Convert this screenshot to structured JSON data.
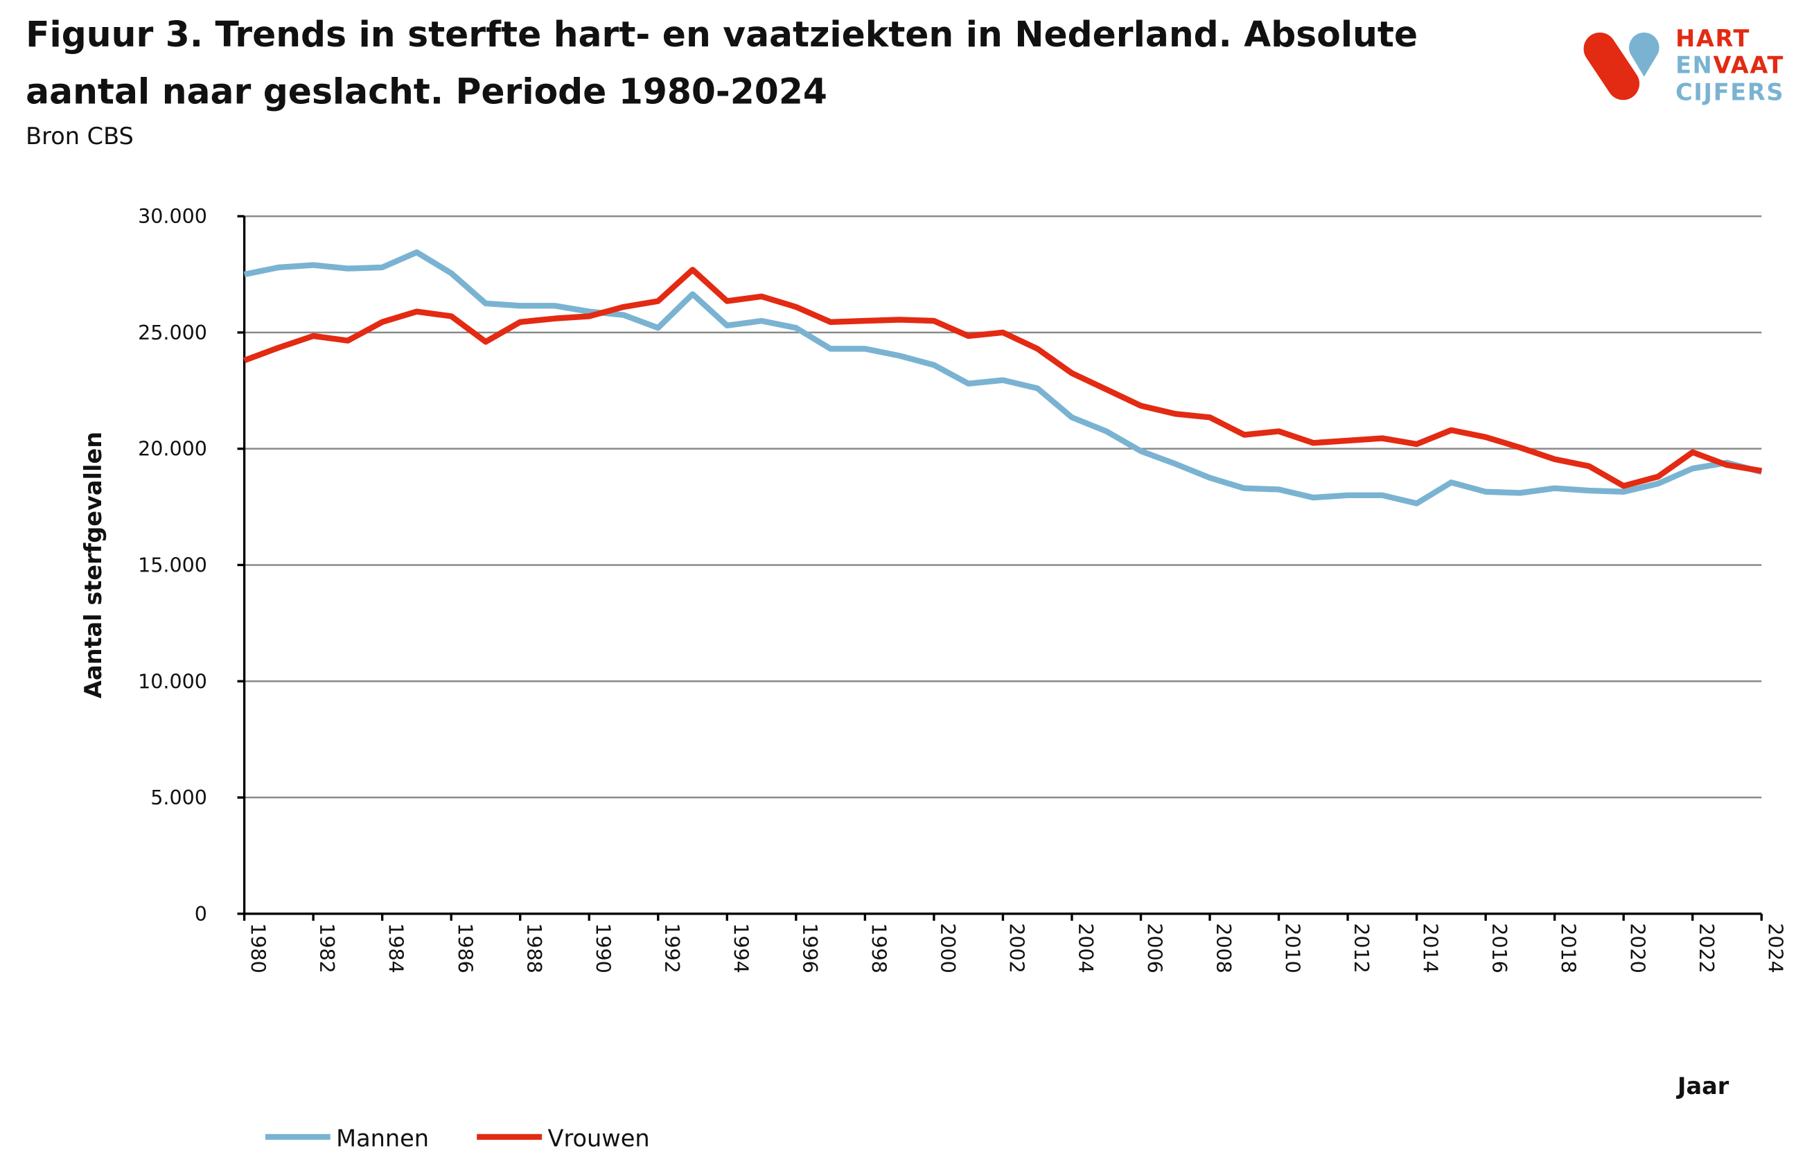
{
  "title_line1": "Figuur 3. Trends in sterfte hart- en vaatziekten in Nederland. Absolute",
  "title_line2": "aantal naar geslacht. Periode 1980-2024",
  "source": "Bron CBS",
  "logo": {
    "line1": "HART",
    "line2a": "EN",
    "line2b": "VAAT",
    "line3": "CIJFERS",
    "red": "#e32a12",
    "blue": "#7ab3d2"
  },
  "chart_data": {
    "type": "line",
    "title": "Figuur 3. Trends in sterfte hart- en vaatziekten in Nederland. Absolute aantal naar geslacht. Periode 1980-2024",
    "xlabel": "Jaar",
    "ylabel": "Aantal sterfgevallen",
    "ylim": [
      0,
      30000
    ],
    "xlim": [
      1980,
      2024
    ],
    "grid": true,
    "legend": "bottom-left",
    "y_ticks": [
      "0",
      "5.000",
      "10.000",
      "15.000",
      "20.000",
      "25.000",
      "30.000"
    ],
    "x_ticks": [
      "1980",
      "1982",
      "1984",
      "1986",
      "1988",
      "1990",
      "1992",
      "1994",
      "1996",
      "1998",
      "2000",
      "2002",
      "2004",
      "2006",
      "2008",
      "2010",
      "2012",
      "2014",
      "2016",
      "2018",
      "2020",
      "2022",
      "2024"
    ],
    "x": [
      1980,
      1981,
      1982,
      1983,
      1984,
      1985,
      1986,
      1987,
      1988,
      1989,
      1990,
      1991,
      1992,
      1993,
      1994,
      1995,
      1996,
      1997,
      1998,
      1999,
      2000,
      2001,
      2002,
      2003,
      2004,
      2005,
      2006,
      2007,
      2008,
      2009,
      2010,
      2011,
      2012,
      2013,
      2014,
      2015,
      2016,
      2017,
      2018,
      2019,
      2020,
      2021,
      2022,
      2023,
      2024
    ],
    "series": [
      {
        "name": "Mannen",
        "color": "#7ab3d2",
        "values": [
          27500,
          27800,
          27900,
          27750,
          27800,
          28450,
          27550,
          26250,
          26150,
          26150,
          25900,
          25750,
          25200,
          26650,
          25300,
          25500,
          25200,
          24300,
          24300,
          24000,
          23600,
          22800,
          22950,
          22600,
          21350,
          20750,
          19900,
          19350,
          18750,
          18300,
          18250,
          17900,
          18000,
          18000,
          17650,
          18550,
          18150,
          18100,
          18300,
          18200,
          18150,
          18500,
          19150,
          19400,
          19000
        ]
      },
      {
        "name": "Vrouwen",
        "color": "#e32a12",
        "values": [
          23800,
          24350,
          24850,
          24650,
          25450,
          25900,
          25700,
          24600,
          25450,
          25600,
          25700,
          26100,
          26350,
          27700,
          26350,
          26550,
          26100,
          25450,
          25500,
          25550,
          25500,
          24850,
          25000,
          24300,
          23250,
          22550,
          21850,
          21500,
          21350,
          20600,
          20750,
          20250,
          20350,
          20450,
          20200,
          20800,
          20500,
          20050,
          19550,
          19250,
          18400,
          18800,
          19850,
          19300,
          19050
        ]
      }
    ]
  }
}
